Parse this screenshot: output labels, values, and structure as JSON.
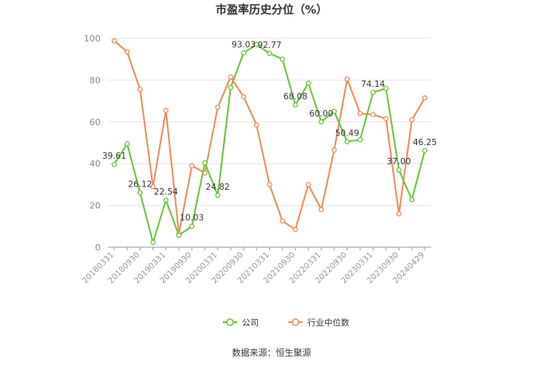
{
  "chart_data": {
    "type": "line",
    "title": "市盈率历史分位（%）",
    "source": "数据来源：恒生聚源",
    "ylim": [
      0,
      100
    ],
    "yticks": [
      "0",
      "20",
      "40",
      "60",
      "80",
      "100"
    ],
    "x_tick_labels": [
      "20180331",
      "20180930",
      "20190331",
      "20190930",
      "20200331",
      "20200930",
      "20210331",
      "20210930",
      "20220331",
      "20220930",
      "20230331",
      "20230930",
      "20240429"
    ],
    "grid": "horizontal",
    "legend_position": "bottom",
    "x": [
      "2018-03-31",
      "2018-06-30",
      "2018-09-30",
      "2018-12-31",
      "2019-03-31",
      "2019-06-30",
      "2019-09-30",
      "2019-12-31",
      "2020-03-31",
      "2020-06-30",
      "2020-09-30",
      "2020-12-31",
      "2021-03-31",
      "2021-06-30",
      "2021-09-30",
      "2021-12-31",
      "2022-03-31",
      "2022-06-30",
      "2022-09-30",
      "2022-12-31",
      "2023-03-31",
      "2023-06-30",
      "2023-09-30",
      "2023-12-31",
      "2024-04-29"
    ],
    "series": [
      {
        "name": "公司",
        "color": "#6ac33e",
        "values": [
          39.61,
          49.5,
          26.12,
          2.3,
          22.54,
          5.7,
          10.03,
          40.4,
          24.82,
          76.5,
          93.03,
          97.0,
          92.77,
          90.0,
          68.08,
          78.5,
          60.0,
          65.0,
          50.49,
          51.5,
          74.14,
          76.0,
          37.0,
          22.8,
          46.25
        ]
      },
      {
        "name": "行业中位数",
        "color": "#f08a5d",
        "values": [
          98.8,
          93.5,
          75.5,
          29.0,
          65.5,
          6.5,
          39.0,
          35.5,
          67.0,
          81.5,
          72.0,
          58.5,
          30.0,
          12.5,
          8.5,
          30.0,
          18.0,
          46.5,
          80.5,
          64.0,
          63.5,
          61.5,
          16.0,
          61.0,
          71.5
        ]
      }
    ],
    "annotations": [
      {
        "series": 0,
        "index": 0,
        "text": "39.61"
      },
      {
        "series": 0,
        "index": 2,
        "text": "26.12"
      },
      {
        "series": 0,
        "index": 4,
        "text": "22.54"
      },
      {
        "series": 0,
        "index": 6,
        "text": "10.03"
      },
      {
        "series": 0,
        "index": 8,
        "text": "24.82"
      },
      {
        "series": 0,
        "index": 10,
        "text": "93.03"
      },
      {
        "series": 0,
        "index": 12,
        "text": "92.77"
      },
      {
        "series": 0,
        "index": 14,
        "text": "68.08"
      },
      {
        "series": 0,
        "index": 16,
        "text": "60.00"
      },
      {
        "series": 0,
        "index": 18,
        "text": "50.49"
      },
      {
        "series": 0,
        "index": 20,
        "text": "74.14"
      },
      {
        "series": 0,
        "index": 22,
        "text": "37.00"
      },
      {
        "series": 0,
        "index": 24,
        "text": "46.25"
      }
    ]
  }
}
